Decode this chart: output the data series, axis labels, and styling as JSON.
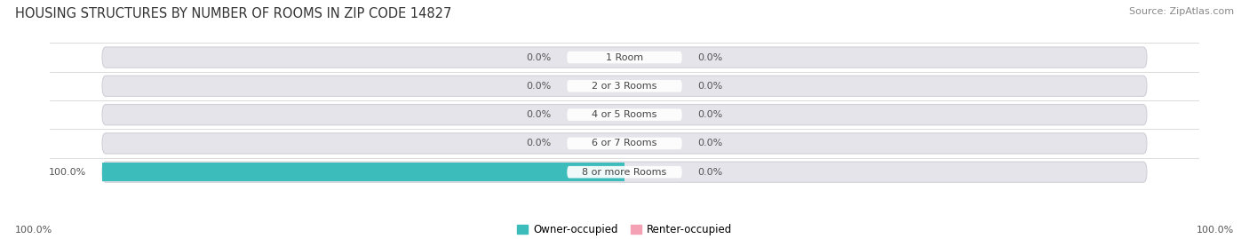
{
  "title": "HOUSING STRUCTURES BY NUMBER OF ROOMS IN ZIP CODE 14827",
  "source": "Source: ZipAtlas.com",
  "categories": [
    "1 Room",
    "2 or 3 Rooms",
    "4 or 5 Rooms",
    "6 or 7 Rooms",
    "8 or more Rooms"
  ],
  "owner_values": [
    0.0,
    0.0,
    0.0,
    0.0,
    100.0
  ],
  "renter_values": [
    0.0,
    0.0,
    0.0,
    0.0,
    0.0
  ],
  "owner_color": "#3DBCBC",
  "renter_color": "#F4A0B5",
  "bar_bg_color": "#E4E4EA",
  "bar_bg_border": "#D0D0D8",
  "label_bg_color": "#FFFFFF",
  "title_fontsize": 10.5,
  "label_fontsize": 8.0,
  "source_fontsize": 8.0,
  "legend_fontsize": 8.5,
  "background_color": "#FFFFFF",
  "bar_scale": 50,
  "min_bar_display": 3
}
